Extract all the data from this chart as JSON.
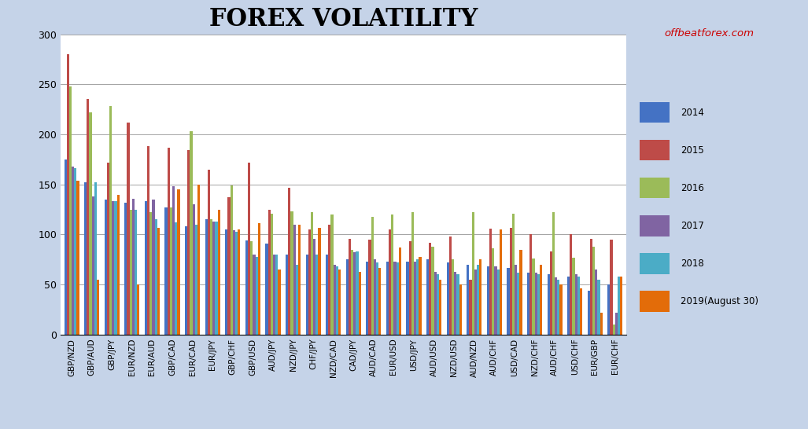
{
  "title": "FOREX VOLATILITY",
  "watermark": "offbeatforex.com",
  "categories": [
    "GBP/NZD",
    "GBP/AUD",
    "GBP/JPY",
    "EUR/NZD",
    "EUR/AUD",
    "GBP/CAD",
    "EUR/CAD",
    "EUR/JPY",
    "GBP/CHF",
    "GBP/USD",
    "AUD/JPY",
    "NZD/JPY",
    "CHF/JPY",
    "NZD/CAD",
    "CAD/JPY",
    "AUD/CAD",
    "EUR/USD",
    "USD/JPY",
    "AUD/USD",
    "NZD/USD",
    "AUD/NZD",
    "AUD/CHF",
    "USD/CAD",
    "NZD/CHF",
    "AUD/CHF",
    "USD/CHF",
    "EUR/GBP",
    "EUR/CHF"
  ],
  "series": {
    "2014": [
      175,
      152,
      135,
      132,
      133,
      127,
      108,
      115,
      105,
      94,
      91,
      80,
      80,
      80,
      75,
      73,
      73,
      73,
      75,
      72,
      70,
      68,
      67,
      62,
      60,
      58,
      44,
      50
    ],
    "2015": [
      280,
      235,
      172,
      212,
      188,
      187,
      184,
      165,
      137,
      172,
      125,
      147,
      105,
      110,
      96,
      95,
      105,
      93,
      92,
      98,
      55,
      106,
      107,
      100,
      83,
      100,
      96,
      95
    ],
    "2016": [
      248,
      222,
      228,
      125,
      122,
      127,
      203,
      115,
      149,
      93,
      121,
      123,
      122,
      120,
      85,
      118,
      120,
      122,
      88,
      75,
      122,
      86,
      121,
      76,
      122,
      77,
      88,
      10
    ],
    "2017": [
      168,
      138,
      133,
      136,
      135,
      148,
      130,
      113,
      104,
      80,
      80,
      110,
      96,
      70,
      82,
      75,
      73,
      73,
      63,
      63,
      65,
      68,
      70,
      62,
      57,
      60,
      65,
      22
    ],
    "2018": [
      166,
      152,
      133,
      125,
      115,
      112,
      110,
      113,
      103,
      78,
      80,
      70,
      80,
      68,
      83,
      72,
      72,
      75,
      60,
      60,
      70,
      65,
      62,
      60,
      55,
      58,
      55,
      58
    ],
    "2019(August 30)": [
      154,
      55,
      140,
      50,
      107,
      145,
      150,
      125,
      105,
      111,
      65,
      110,
      107,
      65,
      63,
      67,
      87,
      78,
      55,
      50,
      75,
      105,
      85,
      70,
      50,
      46,
      22,
      58
    ]
  },
  "series_colors": {
    "2014": "#4472C4",
    "2015": "#BE4B48",
    "2016": "#9BBB59",
    "2017": "#8064A2",
    "2018": "#4BACC6",
    "2019(August 30)": "#E36C09"
  },
  "ylim": [
    0,
    300
  ],
  "yticks": [
    0,
    50,
    100,
    150,
    200,
    250,
    300
  ],
  "background_color": "#FFFFFF",
  "outer_background": "#C5D3E8",
  "title_fontsize": 22,
  "watermark_color": "#CC0000"
}
